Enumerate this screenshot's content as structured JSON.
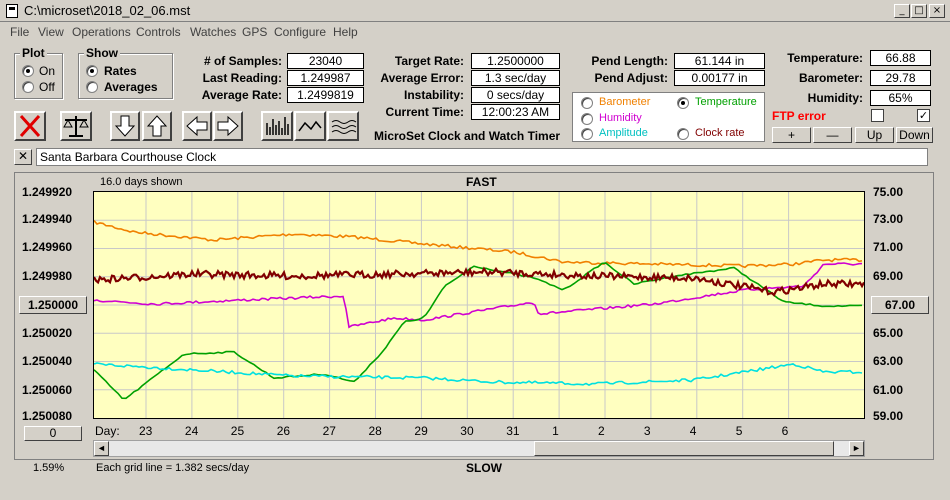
{
  "window": {
    "title": "C:\\microset\\2018_02_06.mst"
  },
  "menu": [
    "File",
    "View",
    "Operations",
    "Controls",
    "Watches",
    "GPS",
    "Configure",
    "Help"
  ],
  "plot_group": {
    "title": "Plot",
    "on": "On",
    "off": "Off"
  },
  "show_group": {
    "title": "Show",
    "rates": "Rates",
    "averages": "Averages"
  },
  "stats": {
    "samples_label": "# of Samples:",
    "samples": "23040",
    "last_label": "Last Reading:",
    "last": "1.249987",
    "avg_label": "Average Rate:",
    "avg": "1.2499819",
    "target_label": "Target Rate:",
    "target": "1.2500000",
    "avgerr_label": "Average Error:",
    "avgerr": "1.3 sec/day",
    "instab_label": "Instability:",
    "instab": "0 secs/day",
    "time_label": "Current Time:",
    "time": "12:00:23 AM",
    "pendlen_label": "Pend Length:",
    "pendlen": "61.144 in",
    "pendadj_label": "Pend Adjust:",
    "pendadj": "0.00177 in",
    "temp_label": "Temperature:",
    "temp": "66.88",
    "baro_label": "Barometer:",
    "baro": "29.78",
    "hum_label": "Humidity:",
    "hum": "65%"
  },
  "app_caption": "MicroSet Clock and Watch Timer",
  "sensors": {
    "barometer": "Barometer",
    "temperature": "Temperature",
    "humidity": "Humidity",
    "amplitude": "Amplitude",
    "clockrate": "Clock rate",
    "colors": {
      "barometer": "#f08000",
      "temperature": "#00a000",
      "humidity": "#d000d0",
      "amplitude": "#00c0c0",
      "clockrate": "#800000"
    }
  },
  "ftp": {
    "label": "FTP error",
    "color": "#ff0000"
  },
  "adjust_buttons": {
    "plus": "+",
    "minus": "—",
    "up": "Up",
    "down": "Down"
  },
  "clock_name": "Santa Barbara Courthouse Clock",
  "chart": {
    "days_shown": "16.0 days shown",
    "fast": "FAST",
    "slow": "SLOW",
    "left_axis": [
      "1.249920",
      "1.249940",
      "1.249960",
      "1.249980",
      "1.250000",
      "1.250020",
      "1.250040",
      "1.250060",
      "1.250080"
    ],
    "right_axis": [
      "75.00",
      "73.00",
      "71.00",
      "69.00",
      "67.00",
      "65.00",
      "63.00",
      "61.00",
      "59.00"
    ],
    "center_left": "1.250000",
    "center_right": "67.00",
    "day_label": "Day:",
    "days": [
      "23",
      "24",
      "25",
      "26",
      "27",
      "28",
      "29",
      "30",
      "31",
      "1",
      "2",
      "3",
      "4",
      "5",
      "6"
    ],
    "zero_button": "0",
    "percent": "1.59%",
    "grid_note": "Each grid line = 1.382 secs/day",
    "series_colors": {
      "barometer": "#f08000",
      "temperature": "#00a000",
      "humidity": "#d000d0",
      "amplitude": "#00e0e0",
      "clockrate": "#800000"
    }
  }
}
